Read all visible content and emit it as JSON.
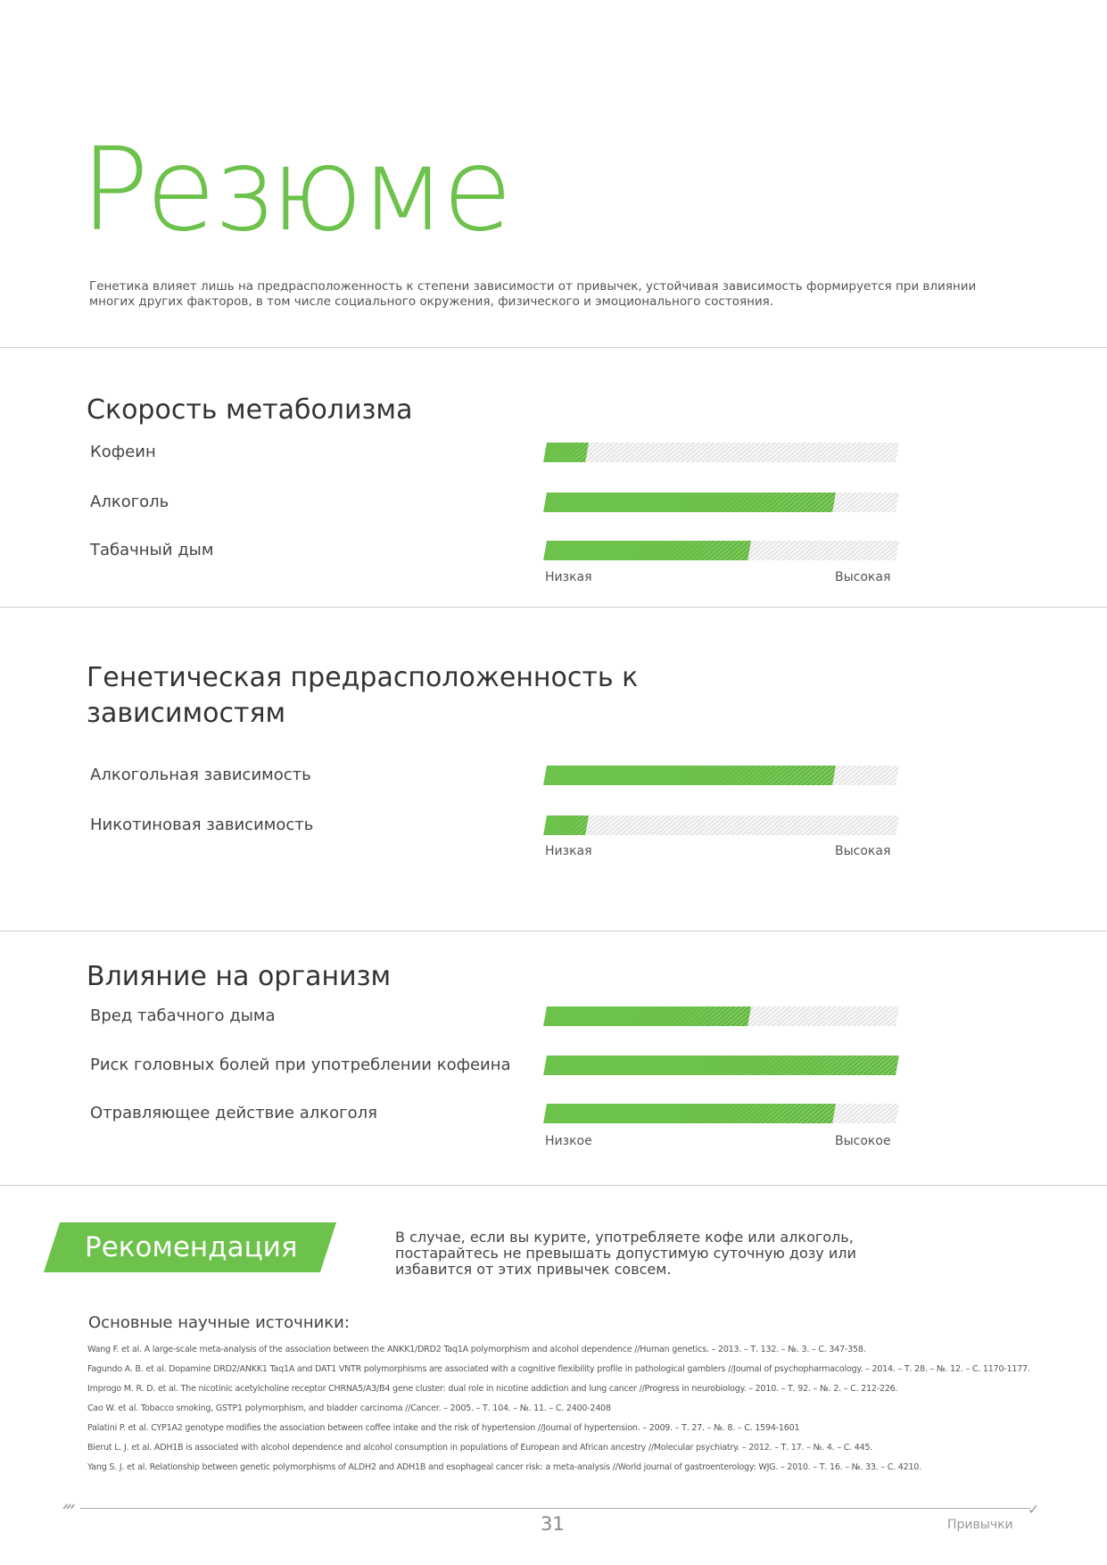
{
  "title": "Резюме",
  "intro": "Генетика влияет лишь на предрасположенность к степени зависимости от привычек, устойчивая зависимость формируется при влиянии многих других факторов, в том числе социального окружения, физического и эмоционального состояния.",
  "accent": "#6cc24a",
  "sections": [
    {
      "heading": "Скорость метаболизма",
      "low": "Низкая",
      "high": "Высокая",
      "rows": [
        {
          "label": "Кофеин",
          "level": 0.12
        },
        {
          "label": "Алкоголь",
          "level": 0.82
        },
        {
          "label": "Табачный дым",
          "level": 0.58
        }
      ]
    },
    {
      "heading": "Генетическая предрасположенность к зависимостям",
      "low": "Низкая",
      "high": "Высокая",
      "rows": [
        {
          "label": "Алкогольная зависимость",
          "level": 0.82
        },
        {
          "label": "Никотиновая зависимость",
          "level": 0.12
        }
      ]
    },
    {
      "heading": "Влияние на организм",
      "low": "Низкое",
      "high": "Высокое",
      "rows": [
        {
          "label": "Вред табачного дыма",
          "level": 0.58
        },
        {
          "label": "Риск головных болей при употреблении кофеина",
          "level": 1.0
        },
        {
          "label": "Отравляющее действие алкоголя",
          "level": 0.82
        }
      ]
    }
  ],
  "recommendation": {
    "label": "Рекомендация",
    "text": "В случае, если вы курите, употребляете кофе или алкоголь, постарайтесь не превышать допустимую суточную дозу или избавится от этих привычек совсем."
  },
  "sources": {
    "heading": "Основные научные источники:",
    "items": [
      "Wang F. et al. A large-scale meta-analysis of the association between the ANKK1/DRD2 Taq1A polymorphism and alcohol dependence //Human genetics. – 2013. – Т. 132. – №. 3. – С. 347-358.",
      "Fagundo A. B. et al. Dopamine DRD2/ANKK1 Taq1A and DAT1 VNTR polymorphisms are associated with a cognitive flexibility profile in pathological gamblers //Journal of psychopharmacology. – 2014. – Т. 28. – №. 12. – С. 1170-1177.",
      "Improgo M. R. D. et al. The nicotinic acetylcholine receptor CHRNA5/A3/B4 gene cluster: dual role in nicotine addiction and lung cancer //Progress in neurobiology. – 2010. – Т. 92. – №. 2. – С. 212-226.",
      "Cao W. et al. Tobacco smoking, GSTP1 polymorphism, and bladder carcinoma //Cancer. – 2005. – Т. 104. – №. 11. – С. 2400-2408",
      "Palatini P. et al. CYP1A2 genotype modifies the association between coffee intake and the risk of hypertension //Journal of hypertension. – 2009. – Т. 27. – №. 8. – С. 1594-1601",
      "Bierut L. J. et al. ADH1B is associated with alcohol dependence and alcohol consumption in populations of European and African ancestry //Molecular psychiatry. – 2012. – Т. 17. – №. 4. – С. 445.",
      "Yang S. J. et al. Relationship between genetic polymorphisms of ALDH2 and ADH1B and esophageal cancer risk: a meta-analysis //World journal of gastroenterology: WJG. – 2010. – Т. 16. – №. 33. – С. 4210."
    ]
  },
  "footer": {
    "page": "31",
    "section": "Привычки"
  }
}
